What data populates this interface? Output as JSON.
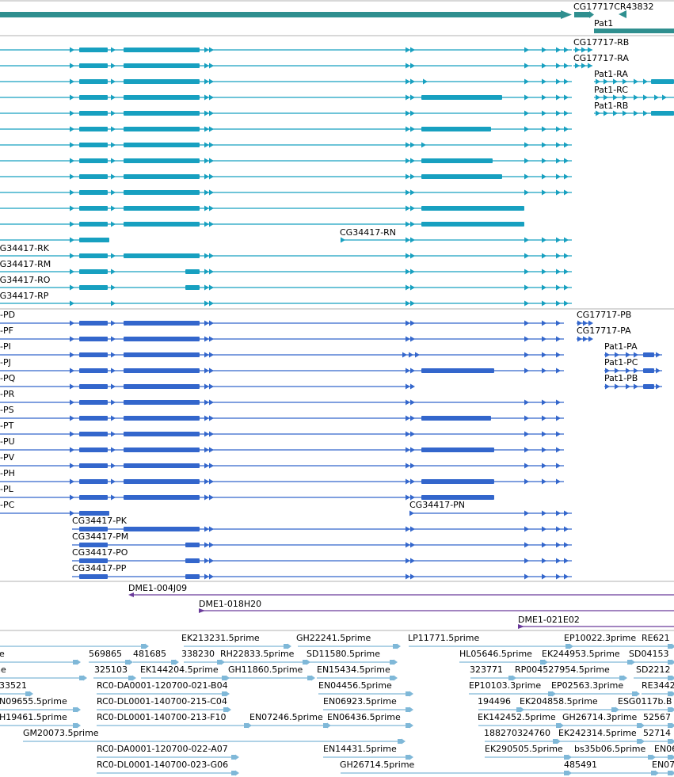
{
  "track_colors": {
    "gene": "#2f8f8f",
    "mrna": "#17a0c0",
    "cds": "#3366cc",
    "clone": "#6a3a9a",
    "est": "#7fb8d8",
    "divider": "#b0b0b0"
  },
  "genes": {
    "labels": [
      {
        "text": "CG17717CR43832"
      },
      {
        "text": "Pat1"
      }
    ]
  },
  "mrna": {
    "right_labels": [
      {
        "text": "CG17717-RB"
      },
      {
        "text": "CG17717-RA"
      },
      {
        "text": "Pat1-RA"
      },
      {
        "text": "Pat1-RC"
      },
      {
        "text": "Pat1-RB"
      }
    ],
    "left_labels": [
      {
        "text": "CG34417-RN"
      },
      {
        "text": "CG34417-RK"
      },
      {
        "text": "CG34417-RM"
      },
      {
        "text": "CG34417-RO"
      },
      {
        "text": "CG34417-RP"
      }
    ]
  },
  "proteins": {
    "edge_labels": [
      {
        "text": "-PD"
      },
      {
        "text": "-PF"
      },
      {
        "text": "-PI"
      },
      {
        "text": "-PJ"
      },
      {
        "text": "-PQ"
      },
      {
        "text": "-PR"
      },
      {
        "text": "-PS"
      },
      {
        "text": "-PT"
      },
      {
        "text": "-PU"
      },
      {
        "text": "-PV"
      },
      {
        "text": "-PH"
      },
      {
        "text": "-PL"
      },
      {
        "text": "-PC"
      }
    ],
    "right_labels": [
      {
        "text": "CG17717-PB"
      },
      {
        "text": "CG17717-PA"
      },
      {
        "text": "Pat1-PA"
      },
      {
        "text": "Pat1-PC"
      },
      {
        "text": "Pat1-PB"
      }
    ],
    "inner_labels": [
      {
        "text": "CG34417-PN"
      },
      {
        "text": "CG34417-PK"
      },
      {
        "text": "CG34417-PM"
      },
      {
        "text": "CG34417-PO"
      },
      {
        "text": "CG34417-PP"
      }
    ]
  },
  "clones": {
    "labels": [
      {
        "text": "DME1-004J09"
      },
      {
        "text": "DME1-018H20"
      },
      {
        "text": "DME1-021E02"
      }
    ]
  },
  "ests": {
    "labels": [
      {
        "text": "EK213231.5prime"
      },
      {
        "text": "GH22241.5prime"
      },
      {
        "text": "LP11771.5prime"
      },
      {
        "text": "EP10022.3prime"
      },
      {
        "text": "RE621"
      },
      {
        "text": "e"
      },
      {
        "text": "569865"
      },
      {
        "text": "481685"
      },
      {
        "text": "338230"
      },
      {
        "text": "RH22833.5prime"
      },
      {
        "text": "SD11580.5prime"
      },
      {
        "text": "HL05646.5prime"
      },
      {
        "text": "EK244953.5prime"
      },
      {
        "text": "SD04153"
      },
      {
        "text": "ne"
      },
      {
        "text": "325103"
      },
      {
        "text": "EK144204.5prime"
      },
      {
        "text": "GH11860.5prime"
      },
      {
        "text": "EN15434.5prime"
      },
      {
        "text": "323771"
      },
      {
        "text": "RP004527954.5prime"
      },
      {
        "text": "SD2212"
      },
      {
        "text": "33521"
      },
      {
        "text": "RC0-DA0001-120700-021-B04"
      },
      {
        "text": "EN04456.5prime"
      },
      {
        "text": "EP10103.3prime"
      },
      {
        "text": "EP02563.3prime"
      },
      {
        "text": "RE3442"
      },
      {
        "text": "N09655.5prime"
      },
      {
        "text": "RC0-DL0001-140700-215-C04"
      },
      {
        "text": "EN06923.5prime"
      },
      {
        "text": "194496"
      },
      {
        "text": "EK204858.5prime"
      },
      {
        "text": "ESG0117b.B"
      },
      {
        "text": "H19461.5prime"
      },
      {
        "text": "RC0-DL0001-140700-213-F10"
      },
      {
        "text": "EN07246.5prime"
      },
      {
        "text": "EN06436.5prime"
      },
      {
        "text": "EK142452.5prime"
      },
      {
        "text": "GH26714.3prime"
      },
      {
        "text": "52567"
      },
      {
        "text": "GM20073.5prime"
      },
      {
        "text": "188270324760"
      },
      {
        "text": "EK242314.5prime"
      },
      {
        "text": "52714"
      },
      {
        "text": "RC0-DA0001-120700-022-A07"
      },
      {
        "text": "EN14431.5prime"
      },
      {
        "text": "EK290505.5prime"
      },
      {
        "text": "bs35b06.5prime"
      },
      {
        "text": "EN06"
      },
      {
        "text": "RC0-DL0001-140700-023-G06"
      },
      {
        "text": "GH26714.5prime"
      },
      {
        "text": "485491"
      },
      {
        "text": "EN07"
      }
    ]
  }
}
